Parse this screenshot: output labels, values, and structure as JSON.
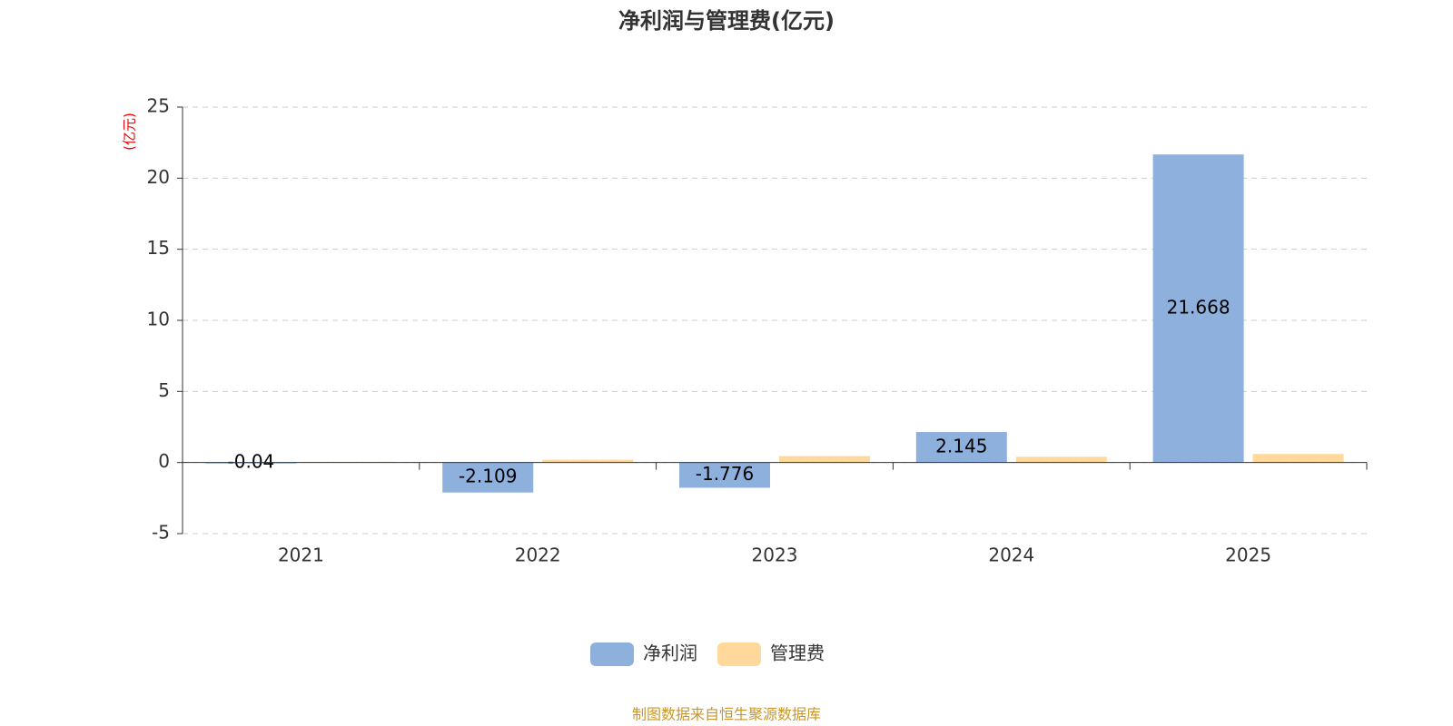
{
  "chart_data": {
    "type": "bar",
    "title": "净利润与管理费(亿元)",
    "y_axis_label": "(亿元)",
    "categories": [
      "2021",
      "2022",
      "2023",
      "2024",
      "2025"
    ],
    "series": [
      {
        "name": "净利润",
        "color": "#8eb0dd",
        "values": [
          -0.04,
          -2.109,
          -1.776,
          2.145,
          21.668
        ],
        "show_labels": true
      },
      {
        "name": "管理费",
        "color": "#fed99b",
        "values": [
          0.05,
          0.2,
          0.45,
          0.4,
          0.6
        ],
        "show_labels": false
      }
    ],
    "ylim": [
      -5,
      25
    ],
    "yticks": [
      -5,
      0,
      5,
      10,
      15,
      20,
      25
    ],
    "grid": true,
    "source": "制图数据来自恒生聚源数据库"
  }
}
